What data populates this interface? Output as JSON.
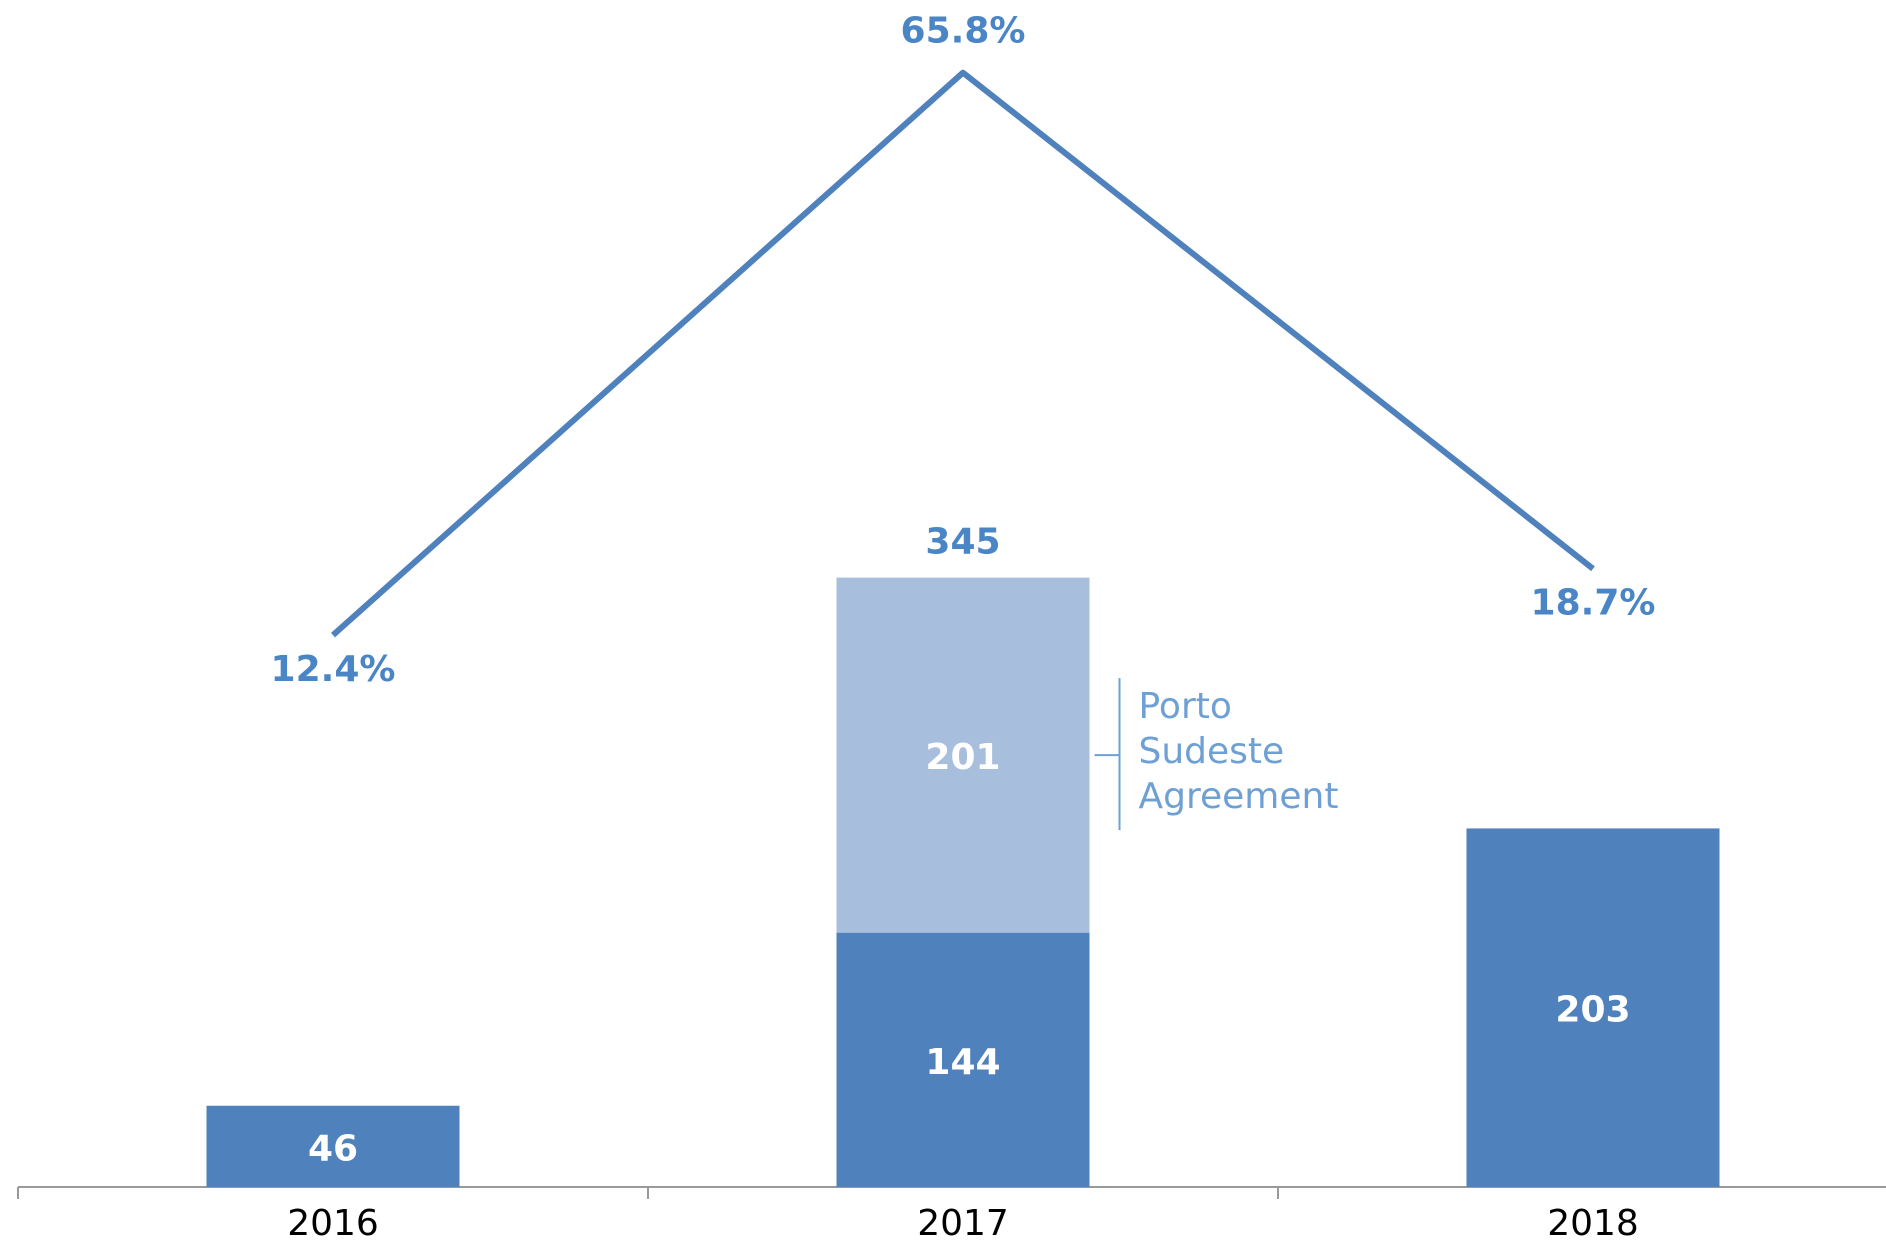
{
  "chart_data": {
    "type": "bar",
    "categories": [
      "2016",
      "2017",
      "2018"
    ],
    "series": [
      {
        "color": "#4f81bd",
        "values": [
          46,
          144,
          203
        ]
      },
      {
        "name": "Porto Sudeste Agreement",
        "color": "#a7bfdd",
        "values": [
          null,
          201,
          null
        ]
      },
      {
        "type": "line",
        "axis": "y2",
        "color": "#4f81bd",
        "values": [
          12.4,
          65.8,
          18.7
        ],
        "value_labels": [
          "12.4%",
          "65.8%",
          "18.7%"
        ]
      }
    ],
    "totals": [
      null,
      345,
      null
    ],
    "ylim": [
      0,
      672
    ],
    "y2lim": [
      -40,
      72.7
    ]
  }
}
